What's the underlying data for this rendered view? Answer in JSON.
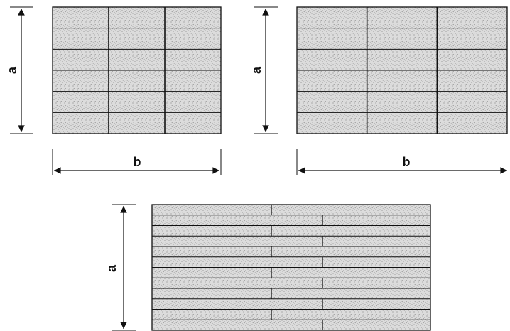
{
  "colors": {
    "line": "#111111",
    "fill": "#dcdcdc",
    "speckle": "#8a8a8a",
    "background": "#ffffff"
  },
  "diagrams": [
    {
      "name": "panel-3-columns",
      "rows": 6,
      "columns": 3,
      "dimension_labels": {
        "height": "a",
        "width": "b"
      }
    },
    {
      "name": "panel-3-columns-wide",
      "rows": 6,
      "columns": 3,
      "dimension_labels": {
        "height": "a",
        "width": "b"
      }
    },
    {
      "name": "panel-staggered-strips",
      "rows": 12,
      "columns": 3,
      "dimension_labels": {
        "height": "a"
      }
    }
  ]
}
